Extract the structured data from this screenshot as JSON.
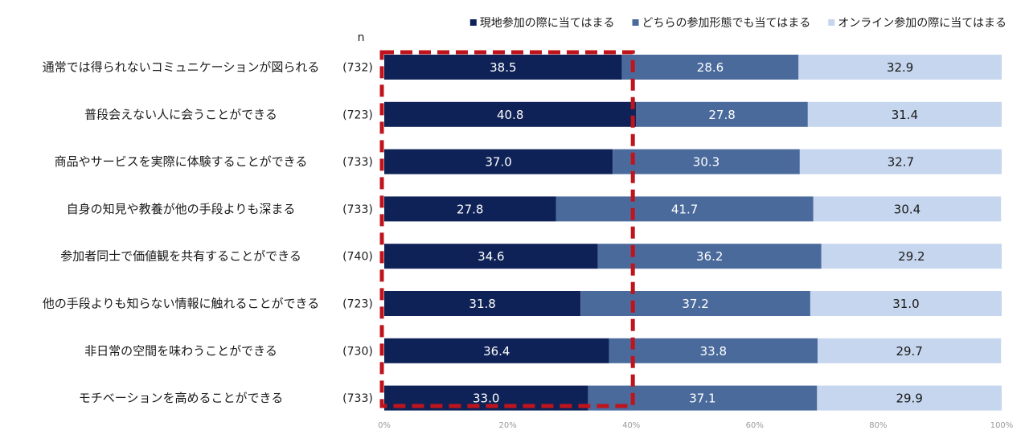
{
  "chart_data": {
    "type": "bar",
    "orientation": "horizontal",
    "stacked": true,
    "n_header": "n",
    "categories": [
      "通常では得られないコミュニケーションが図られる",
      "普段会えない人に会うことができる",
      "商品やサービスを実際に体験することができる",
      "自身の知見や教養が他の手段よりも深まる",
      "参加者同士で価値観を共有することができる",
      "他の手段よりも知らない情報に触れることができる",
      "非日常の空間を味わうことができる",
      "モチベーションを高めることができる"
    ],
    "n_values": [
      "(732)",
      "(723)",
      "(733)",
      "(733)",
      "(740)",
      "(723)",
      "(730)",
      "(733)"
    ],
    "series": [
      {
        "name": "現地参加の際に当てはまる",
        "color": "#0e2257",
        "label_color": "#ffffff",
        "values": [
          38.5,
          40.8,
          37.0,
          27.8,
          34.6,
          31.8,
          36.4,
          33.0
        ]
      },
      {
        "name": "どちらの参加形態でも当てはまる",
        "color": "#4a6a9c",
        "label_color": "#ffffff",
        "values": [
          28.6,
          27.8,
          30.3,
          41.7,
          36.2,
          37.2,
          33.8,
          37.1
        ]
      },
      {
        "name": "オンライン参加の際に当てはまる",
        "color": "#c6d6ee",
        "label_color": "#1a1a1a",
        "values": [
          32.9,
          31.4,
          32.7,
          30.4,
          29.2,
          31.0,
          29.7,
          29.9
        ]
      }
    ],
    "xlim": [
      0,
      100
    ],
    "xticks": [
      "0%",
      "20%",
      "40%",
      "60%",
      "80%",
      "100%"
    ],
    "legend_position": "top-right",
    "grid": false,
    "highlight": {
      "color": "#c0141c",
      "style": "dashed",
      "range": [
        0,
        40
      ]
    }
  }
}
